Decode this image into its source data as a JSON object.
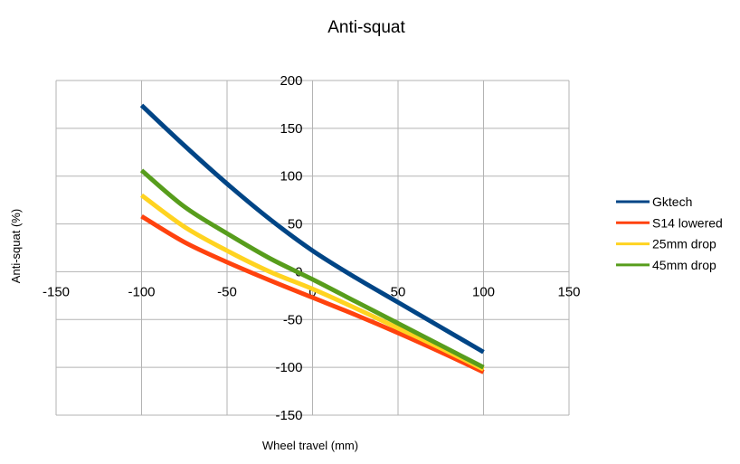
{
  "chart_data": {
    "type": "line",
    "title": "Anti-squat",
    "xlabel": "Wheel travel (mm)",
    "ylabel": "Anti-squat (%)",
    "xlim": [
      -150,
      150
    ],
    "ylim": [
      -150,
      200
    ],
    "xticks": [
      -150,
      -100,
      -50,
      0,
      50,
      100,
      150
    ],
    "yticks": [
      -150,
      -100,
      -50,
      0,
      50,
      100,
      150,
      200
    ],
    "grid": true,
    "legend_position": "right",
    "x": [
      -100,
      -75,
      -50,
      -25,
      0,
      25,
      50,
      75,
      100
    ],
    "series": [
      {
        "name": "Gktech",
        "color": "#004586",
        "values": [
          174,
          132,
          92,
          55,
          22,
          -6,
          -32,
          -58,
          -84
        ]
      },
      {
        "name": "S14 lowered",
        "color": "#ff420e",
        "values": [
          58,
          31,
          10,
          -9,
          -27,
          -45,
          -64,
          -84,
          -105
        ]
      },
      {
        "name": "25mm drop",
        "color": "#ffd320",
        "values": [
          80,
          47,
          22,
          0,
          -18,
          -38,
          -59,
          -80,
          -102
        ]
      },
      {
        "name": "45mm drop",
        "color": "#579d1c",
        "values": [
          106,
          68,
          40,
          14,
          -8,
          -31,
          -54,
          -77,
          -100
        ]
      }
    ]
  }
}
